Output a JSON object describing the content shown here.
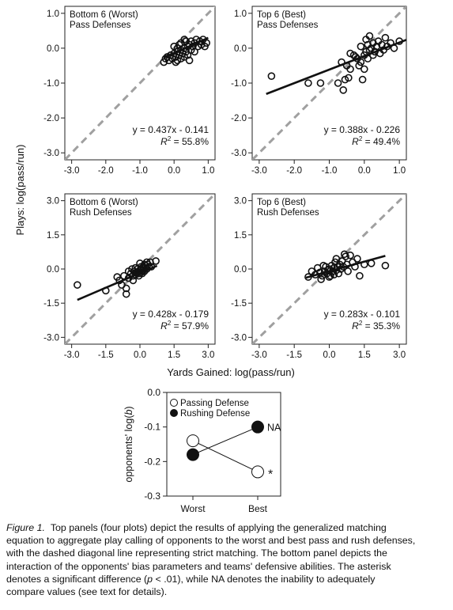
{
  "axis_labels": {
    "shared_y": "Plays: log(pass/run)",
    "shared_x": "Yards Gained: log(pass/run)"
  },
  "chart_data": [
    {
      "type": "scatter",
      "panel": "top-left",
      "title_line1": "Bottom 6 (Worst)",
      "title_line2": "Pass Defenses",
      "xlim": [
        -3.2,
        1.2
      ],
      "ylim": [
        -3.2,
        1.2
      ],
      "xticks": [
        "-3.0",
        "-2.0",
        "-1.0",
        "0.0",
        "1.0"
      ],
      "yticks": [
        "1.0",
        "0.0",
        "-1.0",
        "-2.0",
        "-3.0"
      ],
      "xtick_values": [
        -3,
        -2,
        -1,
        0,
        1
      ],
      "ytick_values": [
        1,
        0,
        -1,
        -2,
        -3
      ],
      "equation": "y = 0.437x - 0.141",
      "r2_value": " = 55.8%",
      "fit": {
        "slope": 0.437,
        "intercept": -0.141,
        "x_range": [
          -0.3,
          1.0
        ]
      },
      "points": [
        [
          -0.25,
          -0.3
        ],
        [
          -0.2,
          -0.25
        ],
        [
          -0.15,
          -0.35
        ],
        [
          -0.1,
          -0.2
        ],
        [
          -0.05,
          -0.3
        ],
        [
          0.0,
          -0.15
        ],
        [
          0.05,
          -0.25
        ],
        [
          0.1,
          -0.1
        ],
        [
          0.1,
          -0.35
        ],
        [
          0.15,
          -0.2
        ],
        [
          0.2,
          -0.05
        ],
        [
          0.2,
          -0.3
        ],
        [
          0.25,
          -0.15
        ],
        [
          0.3,
          0.0
        ],
        [
          0.3,
          -0.25
        ],
        [
          0.35,
          -0.1
        ],
        [
          0.4,
          0.05
        ],
        [
          0.4,
          -0.2
        ],
        [
          0.45,
          0.1
        ],
        [
          0.5,
          -0.05
        ],
        [
          0.5,
          0.2
        ],
        [
          0.55,
          0.05
        ],
        [
          0.6,
          -0.1
        ],
        [
          0.6,
          0.15
        ],
        [
          0.65,
          0.25
        ],
        [
          0.7,
          0.05
        ],
        [
          0.75,
          0.2
        ],
        [
          0.8,
          0.1
        ],
        [
          0.85,
          0.25
        ],
        [
          0.9,
          0.05
        ],
        [
          0.95,
          0.15
        ],
        [
          0.2,
          0.15
        ],
        [
          0.0,
          0.05
        ],
        [
          0.15,
          0.1
        ],
        [
          0.35,
          0.2
        ],
        [
          -0.3,
          -0.4
        ],
        [
          0.05,
          -0.4
        ],
        [
          0.45,
          -0.35
        ],
        [
          0.3,
          0.25
        ],
        [
          0.1,
          0.0
        ]
      ]
    },
    {
      "type": "scatter",
      "panel": "top-right",
      "title_line1": "Top 6 (Best)",
      "title_line2": "Pass Defenses",
      "xlim": [
        -3.2,
        1.2
      ],
      "ylim": [
        -3.2,
        1.2
      ],
      "xticks": [
        "-3.0",
        "-2.0",
        "-1.0",
        "0.0",
        "1.0"
      ],
      "yticks": [
        "1.0",
        "0.0",
        "-1.0",
        "-2.0",
        "-3.0"
      ],
      "xtick_values": [
        -3,
        -2,
        -1,
        0,
        1
      ],
      "ytick_values": [
        1,
        0,
        -1,
        -2,
        -3
      ],
      "equation": "y = 0.388x - 0.226",
      "r2_value": " = 49.4%",
      "fit": {
        "slope": 0.388,
        "intercept": -0.226,
        "x_range": [
          -2.8,
          1.2
        ]
      },
      "points": [
        [
          -2.65,
          -0.8
        ],
        [
          -1.6,
          -1.0
        ],
        [
          -1.25,
          -1.0
        ],
        [
          -0.75,
          -1.0
        ],
        [
          -0.6,
          -1.2
        ],
        [
          -0.55,
          -0.9
        ],
        [
          -0.45,
          -0.85
        ],
        [
          -0.65,
          -0.4
        ],
        [
          -0.5,
          -0.5
        ],
        [
          -0.4,
          -0.6
        ],
        [
          -0.3,
          -0.2
        ],
        [
          -0.2,
          -0.3
        ],
        [
          -0.15,
          -0.5
        ],
        [
          -0.1,
          -0.4
        ],
        [
          -0.05,
          -0.9
        ],
        [
          0.0,
          -0.2
        ],
        [
          0.0,
          -0.6
        ],
        [
          0.05,
          -0.1
        ],
        [
          0.1,
          -0.3
        ],
        [
          0.1,
          0.1
        ],
        [
          0.15,
          -0.05
        ],
        [
          0.2,
          0.0
        ],
        [
          0.25,
          -0.2
        ],
        [
          0.25,
          0.15
        ],
        [
          0.3,
          -0.1
        ],
        [
          0.35,
          0.05
        ],
        [
          0.4,
          0.2
        ],
        [
          0.45,
          -0.15
        ],
        [
          0.5,
          0.1
        ],
        [
          0.55,
          -0.05
        ],
        [
          0.6,
          0.3
        ],
        [
          0.65,
          0.05
        ],
        [
          0.75,
          0.15
        ],
        [
          0.85,
          0.0
        ],
        [
          1.0,
          0.2
        ],
        [
          -0.4,
          -0.15
        ],
        [
          -0.25,
          -0.25
        ],
        [
          0.15,
          0.35
        ],
        [
          -0.1,
          0.05
        ],
        [
          0.05,
          0.25
        ]
      ]
    },
    {
      "type": "scatter",
      "panel": "bottom-left",
      "title_line1": "Bottom 6 (Worst)",
      "title_line2": "Rush Defenses",
      "xlim": [
        -3.3,
        3.3
      ],
      "ylim": [
        -3.3,
        3.3
      ],
      "xticks": [
        "-3.0",
        "-1.5",
        "0.0",
        "1.5",
        "3.0"
      ],
      "yticks": [
        "3.0",
        "1.5",
        "0.0",
        "-1.5",
        "-3.0"
      ],
      "xtick_values": [
        -3,
        -1.5,
        0,
        1.5,
        3
      ],
      "ytick_values": [
        3,
        1.5,
        0,
        -1.5,
        -3
      ],
      "equation": "y = 0.428x - 0.179",
      "r2_value": " = 57.9%",
      "fit": {
        "slope": 0.428,
        "intercept": -0.179,
        "x_range": [
          -2.75,
          0.75
        ]
      },
      "points": [
        [
          -2.75,
          -0.7
        ],
        [
          -1.5,
          -0.95
        ],
        [
          -1.0,
          -0.35
        ],
        [
          -0.9,
          -0.5
        ],
        [
          -0.8,
          -0.7
        ],
        [
          -0.6,
          -0.85
        ],
        [
          -0.6,
          -1.1
        ],
        [
          -0.7,
          -0.3
        ],
        [
          -0.5,
          -0.4
        ],
        [
          -0.4,
          -0.2
        ],
        [
          -0.3,
          -0.3
        ],
        [
          -0.25,
          -0.1
        ],
        [
          -0.2,
          -0.25
        ],
        [
          -0.15,
          -0.15
        ],
        [
          -0.1,
          0.0
        ],
        [
          -0.05,
          -0.2
        ],
        [
          0.0,
          -0.05
        ],
        [
          0.0,
          0.25
        ],
        [
          0.05,
          -0.15
        ],
        [
          0.1,
          0.05
        ],
        [
          0.15,
          0.1
        ],
        [
          0.2,
          -0.1
        ],
        [
          0.25,
          0.15
        ],
        [
          0.3,
          0.0
        ],
        [
          0.35,
          0.2
        ],
        [
          0.45,
          0.3
        ],
        [
          0.5,
          0.1
        ],
        [
          0.7,
          0.35
        ],
        [
          -0.35,
          0.0
        ],
        [
          0.1,
          -0.2
        ],
        [
          -0.5,
          -0.1
        ],
        [
          -0.2,
          0.05
        ],
        [
          0.05,
          0.1
        ],
        [
          0.3,
          0.3
        ],
        [
          0.15,
          -0.05
        ],
        [
          -0.05,
          -0.3
        ],
        [
          0.4,
          0.1
        ],
        [
          -0.1,
          -0.15
        ],
        [
          0.2,
          0.2
        ],
        [
          -0.3,
          -0.5
        ]
      ]
    },
    {
      "type": "scatter",
      "panel": "bottom-right",
      "title_line1": "Top 6 (Best)",
      "title_line2": "Rush Defenses",
      "xlim": [
        -3.3,
        3.3
      ],
      "ylim": [
        -3.3,
        3.3
      ],
      "xticks": [
        "-3.0",
        "-1.5",
        "0.0",
        "1.5",
        "3.0"
      ],
      "yticks": [
        "3.0",
        "1.5",
        "0.0",
        "-1.5",
        "-3.0"
      ],
      "xtick_values": [
        -3,
        -1.5,
        0,
        1.5,
        3
      ],
      "ytick_values": [
        3,
        1.5,
        0,
        -1.5,
        -3
      ],
      "equation": "y = 0.283x - 0.101",
      "r2_value": " = 35.3%",
      "fit": {
        "slope": 0.283,
        "intercept": -0.101,
        "x_range": [
          -1.0,
          2.4
        ]
      },
      "points": [
        [
          -0.9,
          -0.35
        ],
        [
          -0.75,
          -0.1
        ],
        [
          -0.6,
          -0.25
        ],
        [
          -0.5,
          0.05
        ],
        [
          -0.4,
          -0.15
        ],
        [
          -0.35,
          -0.45
        ],
        [
          -0.3,
          -0.3
        ],
        [
          -0.2,
          -0.1
        ],
        [
          -0.15,
          0.1
        ],
        [
          -0.1,
          -0.2
        ],
        [
          -0.05,
          -0.05
        ],
        [
          0.0,
          0.0
        ],
        [
          0.05,
          -0.3
        ],
        [
          0.1,
          0.15
        ],
        [
          0.15,
          -0.1
        ],
        [
          0.2,
          0.05
        ],
        [
          0.25,
          0.3
        ],
        [
          0.3,
          -0.05
        ],
        [
          0.35,
          0.1
        ],
        [
          0.4,
          -0.2
        ],
        [
          0.45,
          0.2
        ],
        [
          0.5,
          0.0
        ],
        [
          0.55,
          0.35
        ],
        [
          0.6,
          0.1
        ],
        [
          0.7,
          0.55
        ],
        [
          0.75,
          0.2
        ],
        [
          0.8,
          -0.1
        ],
        [
          0.9,
          0.6
        ],
        [
          1.0,
          0.3
        ],
        [
          1.1,
          0.1
        ],
        [
          1.2,
          0.45
        ],
        [
          1.3,
          -0.3
        ],
        [
          1.5,
          0.2
        ],
        [
          1.8,
          0.25
        ],
        [
          2.4,
          0.15
        ],
        [
          0.0,
          -0.35
        ],
        [
          0.3,
          0.45
        ],
        [
          0.65,
          0.65
        ],
        [
          -0.25,
          0.15
        ],
        [
          0.2,
          -0.25
        ]
      ]
    },
    {
      "type": "line",
      "panel": "interaction",
      "ylabel_prefix": "opponents' log(",
      "ylabel_var": "b",
      "ylabel_suffix": ")",
      "categories": [
        "Worst",
        "Best"
      ],
      "ylim": [
        -0.3,
        0.0
      ],
      "yticks": [
        "0.0",
        "-0.1",
        "-0.2",
        "-0.3"
      ],
      "ytick_values": [
        0.0,
        -0.1,
        -0.2,
        -0.3
      ],
      "legend": [
        "Passing Defense",
        "Rushing Defense"
      ],
      "series": [
        {
          "name": "Passing Defense",
          "fill": "open",
          "values": [
            -0.14,
            -0.23
          ]
        },
        {
          "name": "Rushing Defense",
          "fill": "filled",
          "values": [
            -0.18,
            -0.1
          ]
        }
      ],
      "annotations": {
        "rushing_best": "NA",
        "passing_best": "*"
      }
    }
  ],
  "caption": {
    "label": "Figure 1",
    "line1": "Top panels (four plots) depict the results of applying the generalized matching",
    "line2": "equation to aggregate play calling of opponents to the worst and best pass and rush defenses,",
    "line3": "with the dashed diagonal line representing strict matching. The bottom panel depicts the",
    "line4": "interaction of the opponents' bias parameters and teams' defensive abilities. The asterisk",
    "line5_a": "denotes a significant difference (",
    "line5_p": "p",
    "line5_b": " < .01), while NA denotes the inability to adequately",
    "line6": "compare values (see text for details)."
  }
}
